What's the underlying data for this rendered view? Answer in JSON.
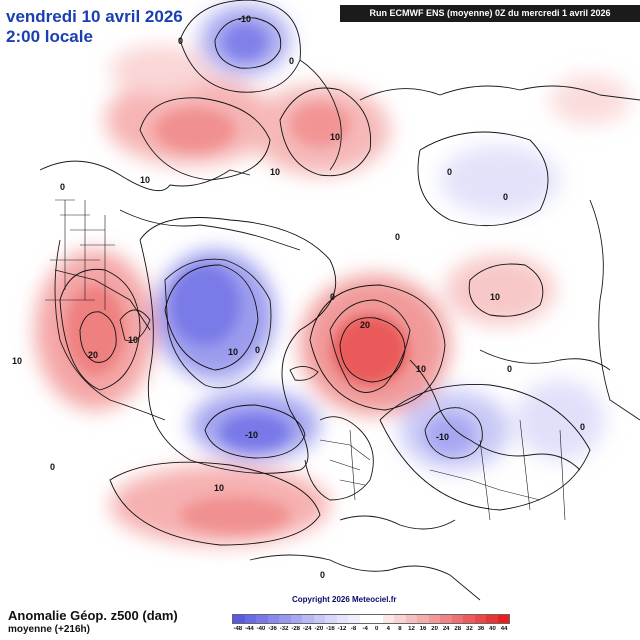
{
  "header": {
    "date": "vendredi 10 avril 2026",
    "time": "2:00 locale",
    "run_info": "Run ECMWF ENS (moyenne) 0Z du mercredi 1 avril 2026"
  },
  "footer": {
    "variable": "Anomalie Géop. z500 (dam)",
    "mean": "moyenne    (+216h)",
    "copyright": "Copyright 2026 Meteociel.fr"
  },
  "colorbar": {
    "colors": [
      "#5a5ae0",
      "#6a6ae6",
      "#7878ea",
      "#8888ee",
      "#9898f0",
      "#a8a8f2",
      "#b8b8f4",
      "#c8c8f6",
      "#d8d8f8",
      "#e4e4fa",
      "#eeeefc",
      "#ffffff",
      "#ffffff",
      "#fce6e6",
      "#f8d4d4",
      "#f6c0c0",
      "#f4acac",
      "#f29898",
      "#f08484",
      "#ee7070",
      "#ec5c5c",
      "#ea4848",
      "#e83434",
      "#e62020"
    ],
    "ticks": [
      "-48",
      "-44",
      "-40",
      "-36",
      "-32",
      "-28",
      "-24",
      "-20",
      "-16",
      "-12",
      "-8",
      "-4",
      "0",
      "4",
      "8",
      "12",
      "16",
      "20",
      "24",
      "28",
      "32",
      "36",
      "40",
      "44"
    ]
  },
  "contour_labels": [
    "-10",
    "0",
    "0",
    "10",
    "0",
    "10",
    "10",
    "0",
    "0",
    "0",
    "10",
    "20",
    "10",
    "0",
    "-10",
    "0",
    "-10",
    "20",
    "10",
    "10",
    "10",
    "0",
    "0",
    "10",
    "0",
    "0"
  ],
  "palette": {
    "positive": "#f07070",
    "positive_strong": "#e83030",
    "negative": "#6a6ae8",
    "negative_strong": "#4040d0",
    "title_blue": "#1a3fb0"
  }
}
